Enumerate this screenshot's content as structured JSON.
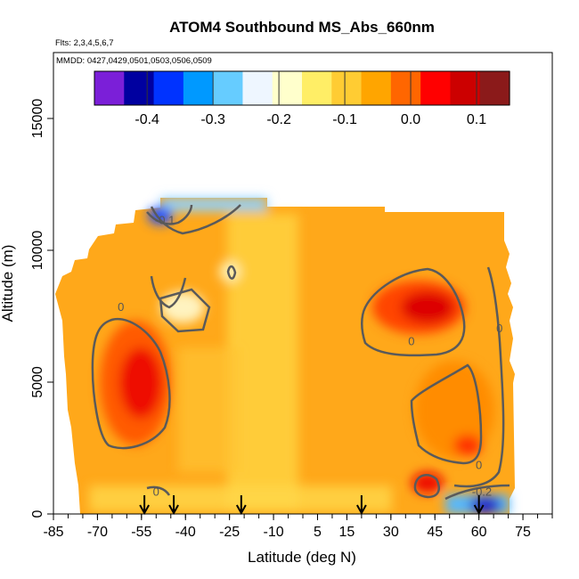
{
  "chart_data": {
    "type": "heatmap",
    "title": "ATOM4 Southbound MS_Abs_660nm",
    "flights_note": "Flts: 2,3,4,5,6,7",
    "dates_note": "MMDD: 0427,0429,0501,0503,0506,0509",
    "xlabel": "Latitude (deg N)",
    "ylabel": "Altitude (m)",
    "xlim": [
      -85,
      85
    ],
    "ylim": [
      0,
      17500
    ],
    "x_tick_labels": [
      "-85",
      "-70",
      "-55",
      "-40",
      "-25",
      "-10",
      "5",
      "15",
      "30",
      "45",
      "60",
      "75"
    ],
    "x_tick_values": [
      -85,
      -70,
      -55,
      -40,
      -25,
      -10,
      5,
      15,
      30,
      45,
      60,
      75
    ],
    "x_minor_step": 5,
    "y_tick_labels": [
      "0",
      "5000",
      "10000",
      "15000"
    ],
    "y_tick_values": [
      0,
      5000,
      10000,
      15000
    ],
    "colorbar": {
      "range": [
        -0.48,
        0.15
      ],
      "tick_labels": [
        "-0.4",
        "-0.3",
        "-0.2",
        "-0.1",
        "0.0",
        "0.1"
      ],
      "tick_values": [
        -0.4,
        -0.3,
        -0.2,
        -0.1,
        0.0,
        0.1
      ],
      "placement": "top inside plot",
      "colors": [
        "#7b1fd8",
        "#0000a0",
        "#0033ff",
        "#0099ff",
        "#66ccff",
        "#eef6ff",
        "#ffffcc",
        "#ffee66",
        "#ffcc33",
        "#ffa500",
        "#ff6600",
        "#ff0000",
        "#cc0000",
        "#8b1a1a"
      ]
    },
    "contour_labels": [
      {
        "text": "-0.1",
        "lat": -47,
        "alt": 11000
      },
      {
        "text": "0",
        "lat": -62,
        "alt": 7700
      },
      {
        "text": "0",
        "lat": 37,
        "alt": 6400
      },
      {
        "text": "0",
        "lat": 67,
        "alt": 6900
      },
      {
        "text": "0",
        "lat": 60,
        "alt": 1700
      },
      {
        "text": "0",
        "lat": -50,
        "alt": 700
      },
      {
        "text": "-0.2",
        "lat": 61,
        "alt": 700
      }
    ],
    "profile_arrows_lat": [
      -54,
      -44,
      -21,
      20,
      60
    ],
    "grid": false
  }
}
